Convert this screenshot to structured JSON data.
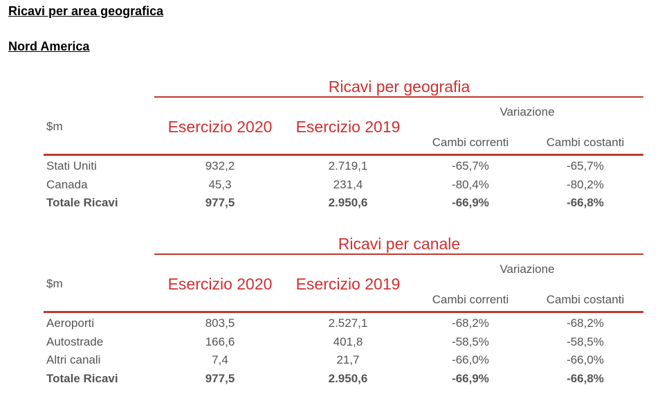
{
  "heading": "Ricavi per area geografica",
  "subheading": "Nord America",
  "tables": [
    {
      "title": "Ricavi per geografia",
      "unit": "$m",
      "col_2020": "Esercizio 2020",
      "col_2019": "Esercizio 2019",
      "variazione": "Variazione",
      "cambi_correnti": "Cambi correnti",
      "cambi_costanti": "Cambi costanti",
      "rows": [
        {
          "label": "Stati Uniti",
          "v2020": "932,2",
          "v2019": "2.719,1",
          "correnti": "-65,7%",
          "costanti": "-65,7%",
          "bold": false
        },
        {
          "label": "Canada",
          "v2020": "45,3",
          "v2019": "231,4",
          "correnti": "-80,4%",
          "costanti": "-80,2%",
          "bold": false
        },
        {
          "label": "Totale Ricavi",
          "v2020": "977,5",
          "v2019": "2.950,6",
          "correnti": "-66,9%",
          "costanti": "-66,8%",
          "bold": true
        }
      ]
    },
    {
      "title": "Ricavi per canale",
      "unit": "$m",
      "col_2020": "Esercizio 2020",
      "col_2019": "Esercizio 2019",
      "variazione": "Variazione",
      "cambi_correnti": "Cambi correnti",
      "cambi_costanti": "Cambi costanti",
      "rows": [
        {
          "label": "Aeroporti",
          "v2020": "803,5",
          "v2019": "2.527,1",
          "correnti": "-68,2%",
          "costanti": "-68,2%",
          "bold": false
        },
        {
          "label": "Autostrade",
          "v2020": "166,6",
          "v2019": "401,8",
          "correnti": "-58,5%",
          "costanti": "-58,5%",
          "bold": false
        },
        {
          "label": "Altri canali",
          "v2020": "7,4",
          "v2019": "21,7",
          "correnti": "-66,0%",
          "costanti": "-66,0%",
          "bold": false
        },
        {
          "label": "Totale Ricavi",
          "v2020": "977,5",
          "v2019": "2.950,6",
          "correnti": "-66,9%",
          "costanti": "-66,8%",
          "bold": true
        }
      ]
    }
  ]
}
